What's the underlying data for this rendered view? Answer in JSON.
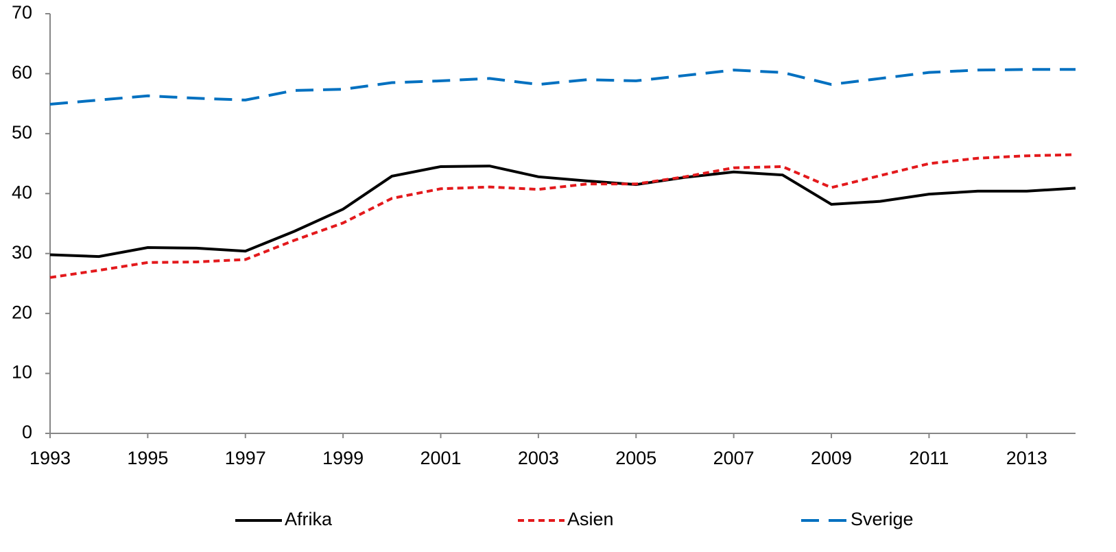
{
  "chart_data": {
    "type": "line",
    "x": [
      1993,
      1994,
      1995,
      1996,
      1997,
      1998,
      1999,
      2000,
      2001,
      2002,
      2003,
      2004,
      2005,
      2006,
      2007,
      2008,
      2009,
      2010,
      2011,
      2012,
      2013,
      2014
    ],
    "series": [
      {
        "name": "Afrika",
        "color": "#000000",
        "dash": "solid",
        "values": [
          29.8,
          29.5,
          31.0,
          30.9,
          30.4,
          33.7,
          37.4,
          42.9,
          44.5,
          44.6,
          42.8,
          42.1,
          41.5,
          42.7,
          43.6,
          43.1,
          38.2,
          38.7,
          39.9,
          40.4,
          40.4,
          40.9
        ]
      },
      {
        "name": "Asien",
        "color": "#e3191c",
        "dash": "short",
        "values": [
          26.0,
          27.2,
          28.5,
          28.6,
          29.0,
          32.2,
          35.1,
          39.2,
          40.8,
          41.1,
          40.7,
          41.6,
          41.6,
          42.8,
          44.3,
          44.5,
          41.0,
          43.0,
          45.0,
          45.9,
          46.3,
          46.5
        ]
      },
      {
        "name": "Sverige",
        "color": "#0070c0",
        "dash": "long",
        "values": [
          54.9,
          55.6,
          56.3,
          55.9,
          55.6,
          57.2,
          57.4,
          58.5,
          58.8,
          59.2,
          58.2,
          59.0,
          58.8,
          59.7,
          60.6,
          60.2,
          58.2,
          59.2,
          60.2,
          60.6,
          60.7,
          60.7
        ]
      }
    ],
    "xlim": [
      1993,
      2014
    ],
    "xticks": [
      1993,
      1995,
      1997,
      1999,
      2001,
      2003,
      2005,
      2007,
      2009,
      2011,
      2013
    ],
    "ylim": [
      0,
      70
    ],
    "yticks": [
      0,
      10,
      20,
      30,
      40,
      50,
      60,
      70
    ],
    "grid": false,
    "legend": "bottom"
  }
}
